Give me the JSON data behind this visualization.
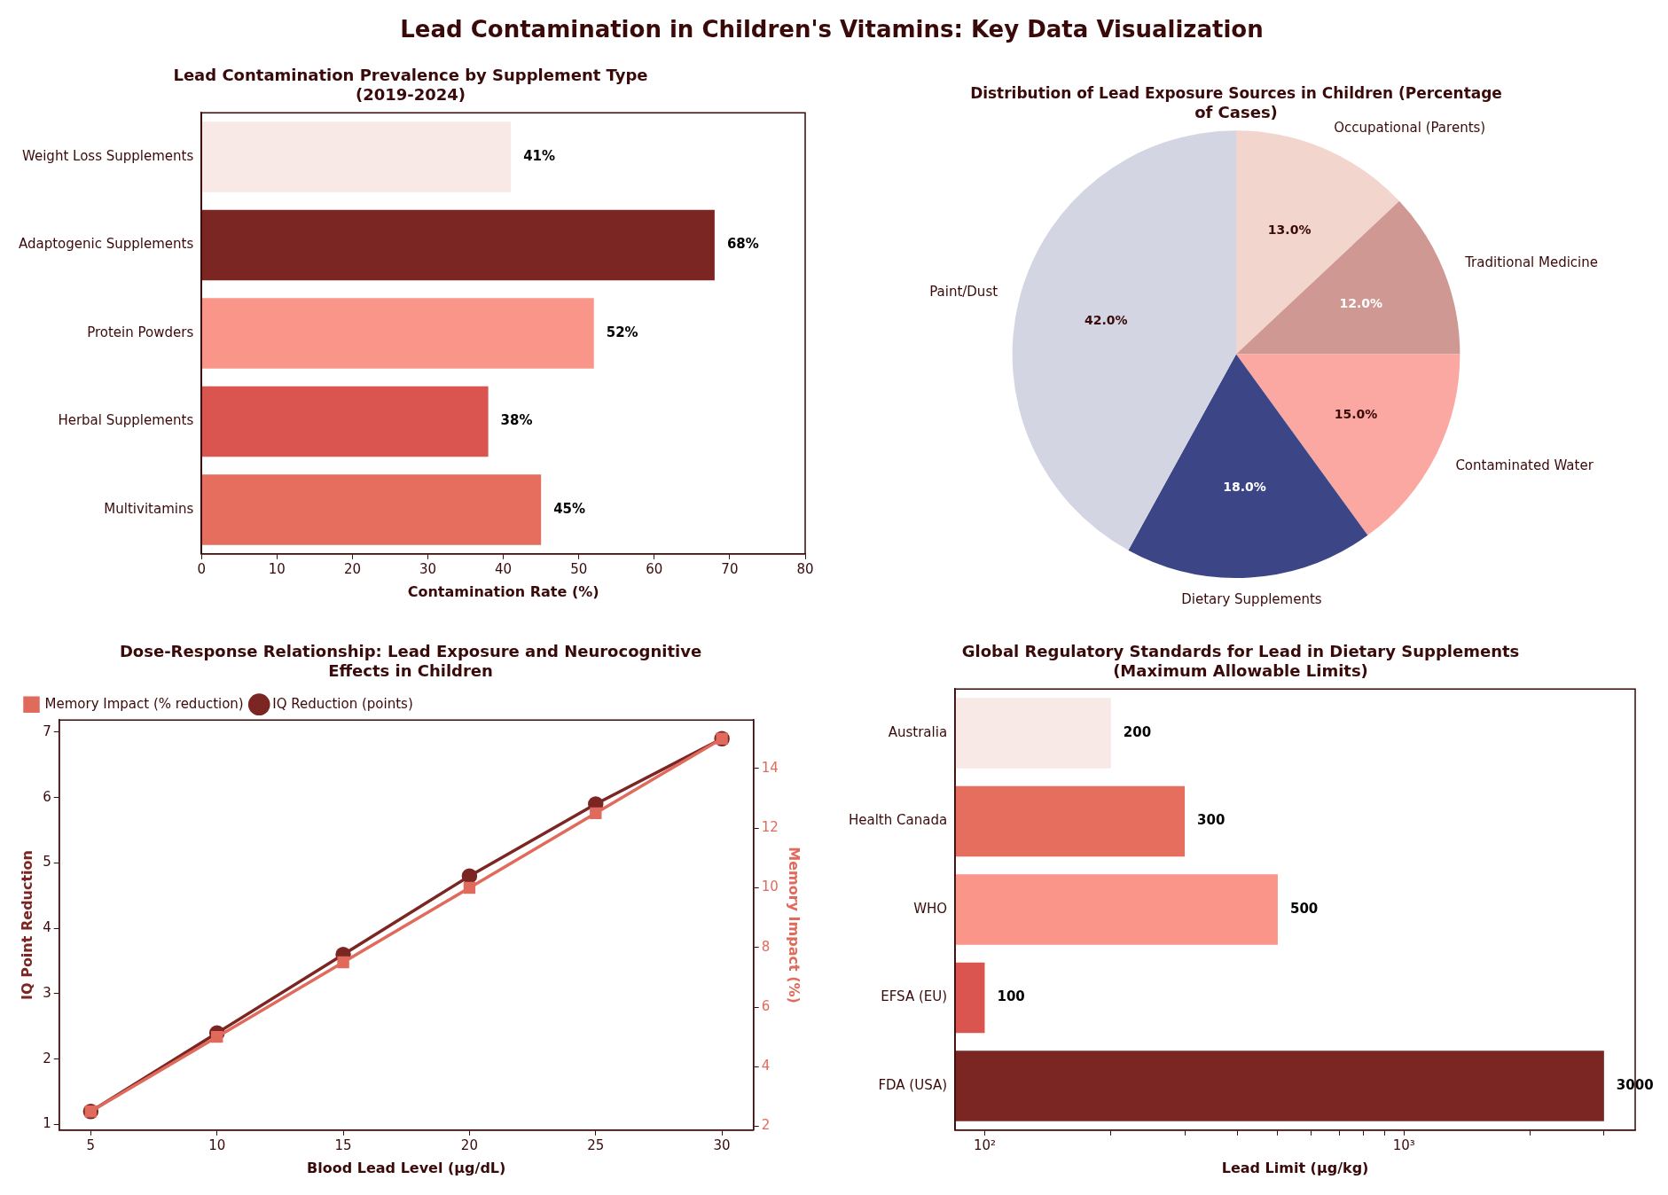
{
  "chart_data": [
    {
      "type": "bar",
      "orientation": "horizontal",
      "annotations": [
        "Lead Contamination in Children's Vitamins: Key Data Visualization"
      ],
      "title": "Lead Contamination Prevalence by Supplement Type (2019-2024)",
      "xlabel": "Contamination Rate (%)",
      "categories": [
        "Weight Loss Supplements",
        "Adaptogenic Supplements",
        "Protein Powders",
        "Herbal Supplements",
        "Multivitamins"
      ],
      "values": [
        41,
        68,
        52,
        38,
        45
      ],
      "colors": [
        "#f8e8e6",
        "#7b2623",
        "#fa958a",
        "#db5550",
        "#e56e5f"
      ],
      "value_labels": [
        "41%",
        "68%",
        "52%",
        "38%",
        "45%"
      ],
      "xlim": [
        0,
        80
      ],
      "xticks": [
        0,
        10,
        20,
        30,
        40,
        50,
        60,
        70,
        80
      ],
      "grid": false,
      "legend": false
    },
    {
      "type": "pie",
      "title": "Distribution of Lead Exposure Sources in Children (Percentage of Cases)",
      "categories": [
        "Occupational (Parents)",
        "Traditional Medicine",
        "Contaminated Water",
        "Dietary Supplements",
        "Paint/Dust"
      ],
      "values": [
        13,
        12,
        15,
        18,
        42
      ],
      "colors": [
        "#f2d5cd",
        "#d09893",
        "#fba8a2",
        "#3c4585",
        "#d3d6e2"
      ],
      "value_labels": [
        "13.0%",
        "12.0%",
        "15.0%",
        "18.0%",
        "42.0%"
      ],
      "legend": false
    },
    {
      "type": "line",
      "title": "Dose-Response Relationship: Lead Exposure and Neurocognitive Effects in Children",
      "xlabel": "Blood Lead Level (μg/dL)",
      "ylabel": "IQ Point Reduction",
      "y2label": "Memory Impact (%)",
      "x": [
        5,
        10,
        15,
        20,
        25,
        30
      ],
      "series": [
        {
          "name": "IQ Reduction (points)",
          "color": "#7b2623",
          "values": [
            1.2,
            2.4,
            3.6,
            4.8,
            5.9,
            6.9
          ],
          "marker": "circle"
        },
        {
          "name": "Memory Impact (% reduction)",
          "color": "#e06a5c",
          "values": [
            2.5,
            5,
            7.5,
            10,
            12.5,
            15
          ],
          "marker": "square",
          "axis": "y2"
        }
      ],
      "xlim": [
        3.75,
        31.25
      ],
      "xticks": [
        5,
        10,
        15,
        20,
        25,
        30
      ],
      "ylim": [
        0.915,
        7.185
      ],
      "yticks": [
        1,
        2,
        3,
        4,
        5,
        6,
        7
      ],
      "y2lim": [
        1.875,
        15.625
      ],
      "y2ticks": [
        2,
        4,
        6,
        8,
        10,
        12,
        14
      ],
      "line_style": "solid",
      "grid": false,
      "legend": "top left"
    },
    {
      "type": "bar",
      "orientation": "horizontal",
      "log": "x",
      "title": "Global Regulatory Standards for Lead in Dietary Supplements (Maximum Allowable Limits)",
      "xlabel": "Lead Limit (μg/kg)",
      "categories": [
        "Australia",
        "Health Canada",
        "WHO",
        "EFSA (EU)",
        "FDA (USA)"
      ],
      "values": [
        200,
        300,
        500,
        100,
        3000
      ],
      "colors": [
        "#f8e8e6",
        "#e56e5f",
        "#fa958a",
        "#db5550",
        "#7b2623"
      ],
      "data_labels": true,
      "xlim": [
        85,
        3560
      ],
      "xticks": [
        {
          "value": 100,
          "label": "10²"
        },
        {
          "value": 200,
          "label": null
        },
        {
          "value": 300,
          "label": null
        },
        {
          "value": 400,
          "label": null
        },
        {
          "value": 500,
          "label": null
        },
        {
          "value": 600,
          "label": null
        },
        {
          "value": 700,
          "label": null
        },
        {
          "value": 800,
          "label": null
        },
        {
          "value": 900,
          "label": null
        },
        {
          "value": 1000,
          "label": "10³"
        },
        {
          "value": 2000,
          "label": null
        },
        {
          "value": 3000,
          "label": null
        }
      ],
      "grid": false,
      "legend": false
    }
  ]
}
